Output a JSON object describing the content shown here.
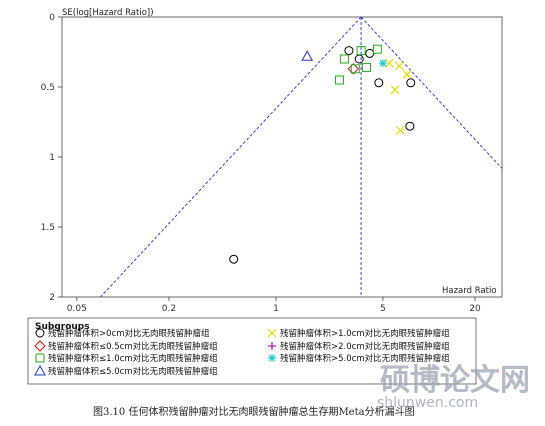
{
  "chart_data": {
    "type": "scatter",
    "subtype": "funnel plot",
    "ylabel": "SE(log[Hazard Ratio])",
    "xlabel": "Hazard Ratio",
    "x_scale": "log",
    "y_reversed": true,
    "xlim": [
      0.04,
      30
    ],
    "ylim": [
      0,
      2
    ],
    "x_ticks": [
      "0.05",
      "0.2",
      "1",
      "5",
      "20"
    ],
    "x_tick_values": [
      0.05,
      0.2,
      1,
      5,
      20
    ],
    "y_ticks": [
      "0",
      "0.5",
      "1",
      "1.5",
      "2"
    ],
    "y_tick_values": [
      0,
      0.5,
      1,
      1.5,
      2
    ],
    "pooled_hr": 3.6,
    "colors": {
      "funnel": "#2233bb",
      "circle": "#000000",
      "diamond": "#cc1111",
      "square": "#22aa22",
      "triangle": "#2233bb",
      "x": "#dddd00",
      "plus": "#aa11aa",
      "star": "#11cccc"
    },
    "series": [
      {
        "name": "残留肿瘤体积>0cm对比无肉眼残留肿瘤组",
        "marker": "circle",
        "points": [
          [
            3.0,
            0.24
          ],
          [
            4.1,
            0.26
          ],
          [
            3.5,
            0.3
          ],
          [
            4.7,
            0.47
          ],
          [
            7.6,
            0.47
          ],
          [
            7.5,
            0.78
          ],
          [
            0.53,
            1.73
          ]
        ]
      },
      {
        "name": "残留肿瘤体积≤0.5cm对比无肉眼残留肿瘤组",
        "marker": "diamond",
        "points": [
          [
            3.2,
            0.37
          ]
        ]
      },
      {
        "name": "残留肿瘤体积≤1.0cm对比无肉眼残留肿瘤组",
        "marker": "square",
        "points": [
          [
            2.8,
            0.3
          ],
          [
            3.6,
            0.24
          ],
          [
            4.6,
            0.23
          ],
          [
            3.9,
            0.36
          ],
          [
            3.3,
            0.37
          ],
          [
            2.6,
            0.45
          ]
        ]
      },
      {
        "name": "残留肿瘤体积≤5.0cm对比无肉眼残留肿瘤组",
        "marker": "triangle",
        "points": [
          [
            1.6,
            0.28
          ]
        ]
      },
      {
        "name": "残留肿瘤体积>1.0cm对比无肉眼残留肿瘤组",
        "marker": "x",
        "points": [
          [
            5.5,
            0.33
          ],
          [
            6.4,
            0.35
          ],
          [
            7.2,
            0.41
          ],
          [
            6.0,
            0.52
          ],
          [
            6.5,
            0.81
          ]
        ]
      },
      {
        "name": "残留肿瘤体积>2.0cm对比无肉眼残留肿瘤组",
        "marker": "plus",
        "points": []
      },
      {
        "name": "残留肿瘤体积>5.0cm对比无肉眼残留肿瘤组",
        "marker": "star",
        "points": [
          [
            5.0,
            0.33
          ]
        ]
      }
    ]
  },
  "legend": {
    "title": "Subgroups",
    "items": [
      {
        "label": "残留肿瘤体积>0cm对比无肉眼残留肿瘤组",
        "marker": "circle"
      },
      {
        "label": "残留肿瘤体积≤0.5cm对比无肉眼残留肿瘤组",
        "marker": "diamond"
      },
      {
        "label": "残留肿瘤体积≤1.0cm对比无肉眼残留肿瘤组",
        "marker": "square"
      },
      {
        "label": "残留肿瘤体积≤5.0cm对比无肉眼残留肿瘤组",
        "marker": "triangle"
      },
      {
        "label": "残留肿瘤体积>1.0cm对比无肉眼残留肿瘤组",
        "marker": "x"
      },
      {
        "label": "残留肿瘤体积>2.0cm对比无肉眼残留肿瘤组",
        "marker": "plus"
      },
      {
        "label": "残留肿瘤体积>5.0cm对比无肉眼残留肿瘤组",
        "marker": "star"
      }
    ]
  },
  "caption": "图3.10 任何体积残留肿瘤对比无肉眼残留肿瘤总生存期Meta分析漏斗图",
  "watermark": {
    "text": "硕博论文网",
    "url": "shlunwen.com"
  }
}
